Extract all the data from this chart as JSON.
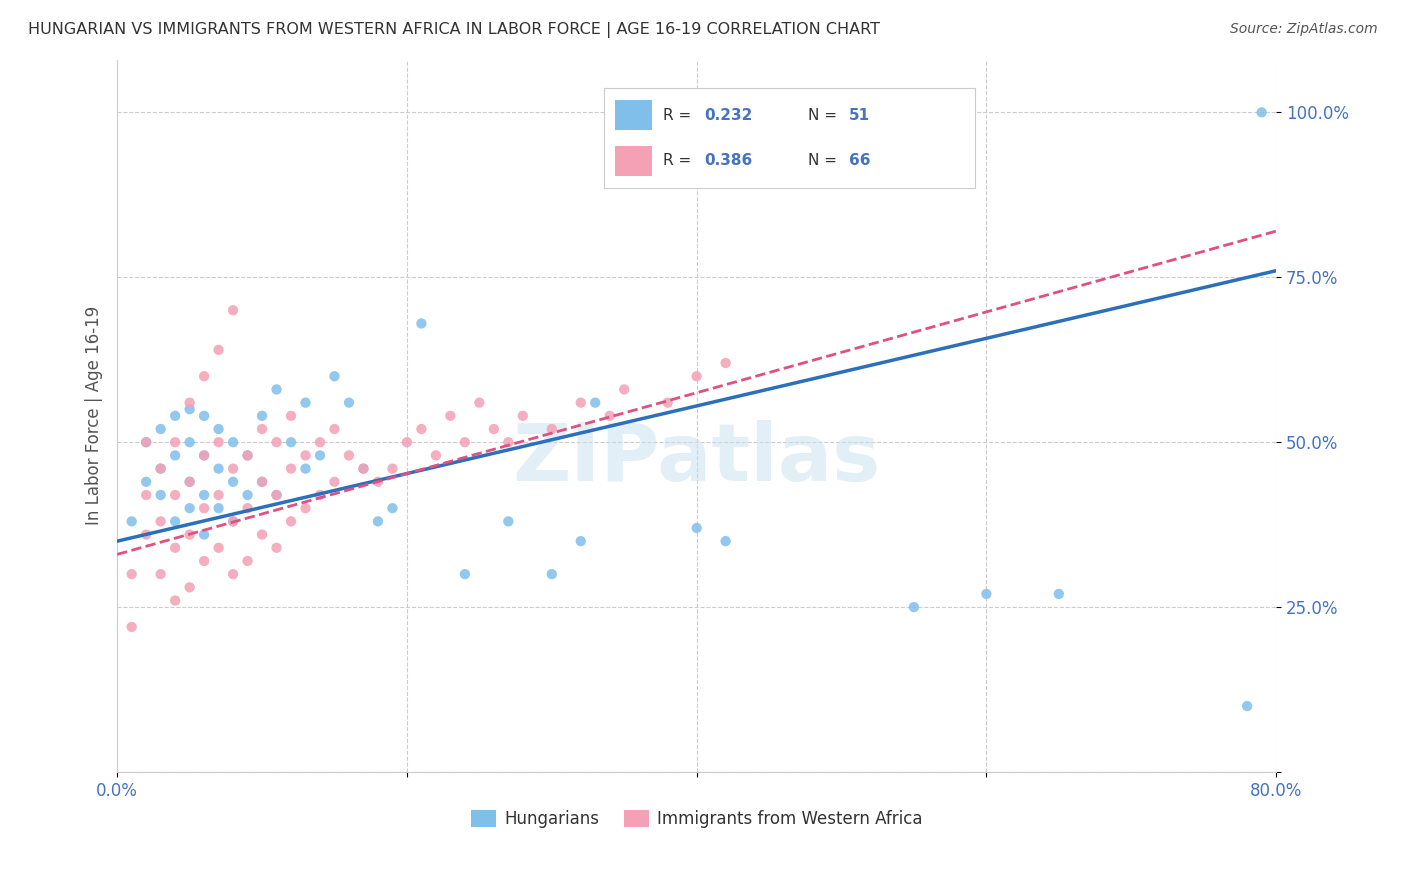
{
  "title": "HUNGARIAN VS IMMIGRANTS FROM WESTERN AFRICA IN LABOR FORCE | AGE 16-19 CORRELATION CHART",
  "source": "Source: ZipAtlas.com",
  "ylabel": "In Labor Force | Age 16-19",
  "xlim": [
    0.0,
    0.8
  ],
  "ylim": [
    0.0,
    1.08
  ],
  "xticks": [
    0.0,
    0.2,
    0.4,
    0.6,
    0.8
  ],
  "xtick_labels": [
    "0.0%",
    "",
    "",
    "",
    "80.0%"
  ],
  "yticks": [
    0.0,
    0.25,
    0.5,
    0.75,
    1.0
  ],
  "ytick_labels": [
    "",
    "25.0%",
    "50.0%",
    "75.0%",
    "100.0%"
  ],
  "blue_R": 0.232,
  "blue_N": 51,
  "pink_R": 0.386,
  "pink_N": 66,
  "blue_color": "#7fbfea",
  "pink_color": "#f4a0b5",
  "blue_line_color": "#2c6fba",
  "pink_line_color": "#e05080",
  "watermark": "ZIPatlas",
  "legend_label_blue": "Hungarians",
  "legend_label_pink": "Immigrants from Western Africa",
  "blue_line_x0": 0.0,
  "blue_line_y0": 0.35,
  "blue_line_x1": 0.8,
  "blue_line_y1": 0.76,
  "pink_line_x0": 0.0,
  "pink_line_y0": 0.33,
  "pink_line_x1": 0.8,
  "pink_line_y1": 0.82,
  "blue_scatter_x": [
    0.01,
    0.02,
    0.02,
    0.03,
    0.03,
    0.03,
    0.04,
    0.04,
    0.04,
    0.05,
    0.05,
    0.05,
    0.05,
    0.06,
    0.06,
    0.06,
    0.06,
    0.07,
    0.07,
    0.07,
    0.08,
    0.08,
    0.08,
    0.09,
    0.09,
    0.1,
    0.1,
    0.11,
    0.11,
    0.12,
    0.13,
    0.13,
    0.14,
    0.15,
    0.16,
    0.17,
    0.18,
    0.19,
    0.21,
    0.24,
    0.27,
    0.3,
    0.32,
    0.33,
    0.4,
    0.42,
    0.55,
    0.6,
    0.65,
    0.78,
    0.79
  ],
  "blue_scatter_y": [
    0.38,
    0.44,
    0.5,
    0.42,
    0.46,
    0.52,
    0.38,
    0.48,
    0.54,
    0.4,
    0.44,
    0.5,
    0.55,
    0.36,
    0.42,
    0.48,
    0.54,
    0.4,
    0.46,
    0.52,
    0.38,
    0.44,
    0.5,
    0.42,
    0.48,
    0.44,
    0.54,
    0.42,
    0.58,
    0.5,
    0.46,
    0.56,
    0.48,
    0.6,
    0.56,
    0.46,
    0.38,
    0.4,
    0.68,
    0.3,
    0.38,
    0.3,
    0.35,
    0.56,
    0.37,
    0.35,
    0.25,
    0.27,
    0.27,
    0.1,
    1.0
  ],
  "pink_scatter_x": [
    0.01,
    0.01,
    0.02,
    0.02,
    0.02,
    0.03,
    0.03,
    0.03,
    0.04,
    0.04,
    0.04,
    0.04,
    0.05,
    0.05,
    0.05,
    0.06,
    0.06,
    0.06,
    0.07,
    0.07,
    0.07,
    0.08,
    0.08,
    0.08,
    0.09,
    0.09,
    0.09,
    0.1,
    0.1,
    0.1,
    0.11,
    0.11,
    0.11,
    0.12,
    0.12,
    0.12,
    0.13,
    0.13,
    0.14,
    0.14,
    0.15,
    0.15,
    0.16,
    0.17,
    0.18,
    0.19,
    0.2,
    0.21,
    0.22,
    0.23,
    0.24,
    0.25,
    0.26,
    0.27,
    0.28,
    0.3,
    0.32,
    0.34,
    0.35,
    0.38,
    0.4,
    0.42,
    0.05,
    0.06,
    0.07,
    0.08
  ],
  "pink_scatter_y": [
    0.3,
    0.22,
    0.36,
    0.42,
    0.5,
    0.3,
    0.38,
    0.46,
    0.26,
    0.34,
    0.42,
    0.5,
    0.28,
    0.36,
    0.44,
    0.32,
    0.4,
    0.48,
    0.34,
    0.42,
    0.5,
    0.3,
    0.38,
    0.46,
    0.32,
    0.4,
    0.48,
    0.36,
    0.44,
    0.52,
    0.34,
    0.42,
    0.5,
    0.38,
    0.46,
    0.54,
    0.4,
    0.48,
    0.42,
    0.5,
    0.44,
    0.52,
    0.48,
    0.46,
    0.44,
    0.46,
    0.5,
    0.52,
    0.48,
    0.54,
    0.5,
    0.56,
    0.52,
    0.5,
    0.54,
    0.52,
    0.56,
    0.54,
    0.58,
    0.56,
    0.6,
    0.62,
    0.56,
    0.6,
    0.64,
    0.7
  ]
}
